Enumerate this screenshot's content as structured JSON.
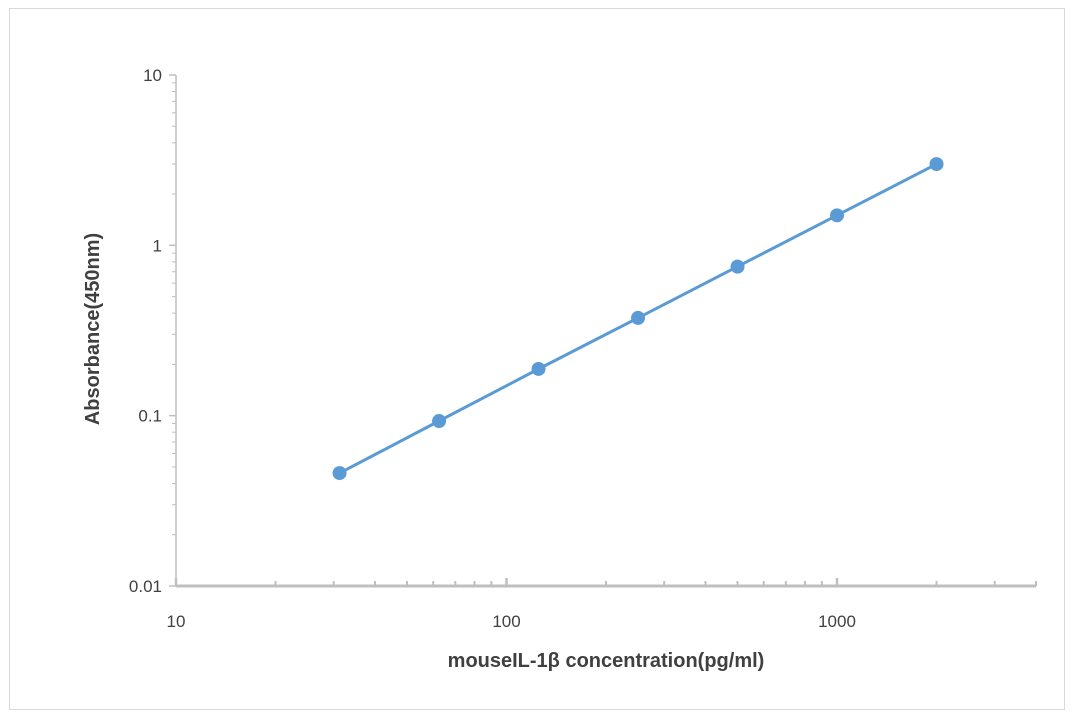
{
  "chart_data": {
    "type": "line",
    "title": "",
    "xlabel": "mouseIL-1β concentration(pg/ml)",
    "ylabel": "Absorbance(450nm)",
    "x_scale": "log",
    "y_scale": "log",
    "xlim": [
      10,
      4000
    ],
    "ylim": [
      0.01,
      10
    ],
    "x_ticks": [
      10,
      100,
      1000
    ],
    "x_tick_labels": [
      "10",
      "100",
      "1000"
    ],
    "y_ticks": [
      0.01,
      0.1,
      1,
      10
    ],
    "y_tick_labels": [
      "0.01",
      "0.1",
      "1",
      "10"
    ],
    "grid": false,
    "legend": "none",
    "series": [
      {
        "color": "#5b9bd5",
        "x": [
          31.25,
          62.5,
          125,
          250,
          500,
          1000,
          2000
        ],
        "y": [
          0.046,
          0.093,
          0.188,
          0.375,
          0.75,
          1.5,
          3.0
        ]
      }
    ]
  }
}
